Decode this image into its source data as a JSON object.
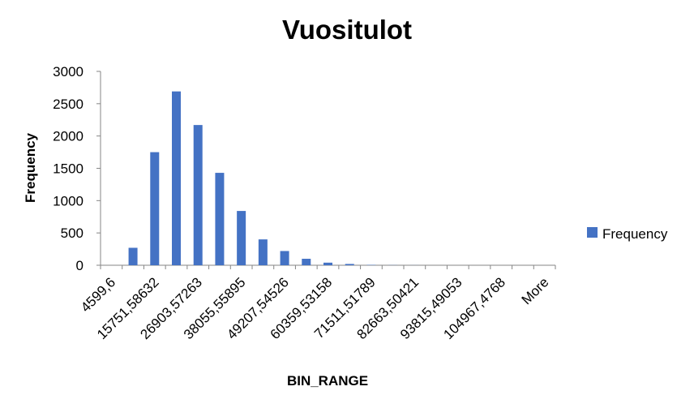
{
  "chart_data": {
    "type": "bar",
    "title": "Vuositulot",
    "xlabel": "BIN_RANGE",
    "ylabel": "Frequency",
    "ylim": [
      0,
      3000
    ],
    "yticks": [
      "0",
      "500",
      "1000",
      "1500",
      "2000",
      "2500",
      "3000"
    ],
    "categories": [
      "4599,6",
      "",
      "15751,58632",
      "",
      "26903,57263",
      "",
      "38055,55895",
      "",
      "49207,54526",
      "",
      "60359,53158",
      "",
      "71511,51789",
      "",
      "82663,50421",
      "",
      "93815,49053",
      "",
      "104967,4768",
      "",
      "More"
    ],
    "series": [
      {
        "name": "Frequency",
        "color": "#4472c4",
        "values": [
          0,
          270,
          1750,
          2690,
          2170,
          1430,
          840,
          400,
          220,
          100,
          40,
          20,
          5,
          2,
          1,
          0,
          0,
          0,
          0,
          0,
          0
        ]
      }
    ],
    "legend": {
      "position": "right",
      "label": "Frequency"
    },
    "grid": false
  }
}
